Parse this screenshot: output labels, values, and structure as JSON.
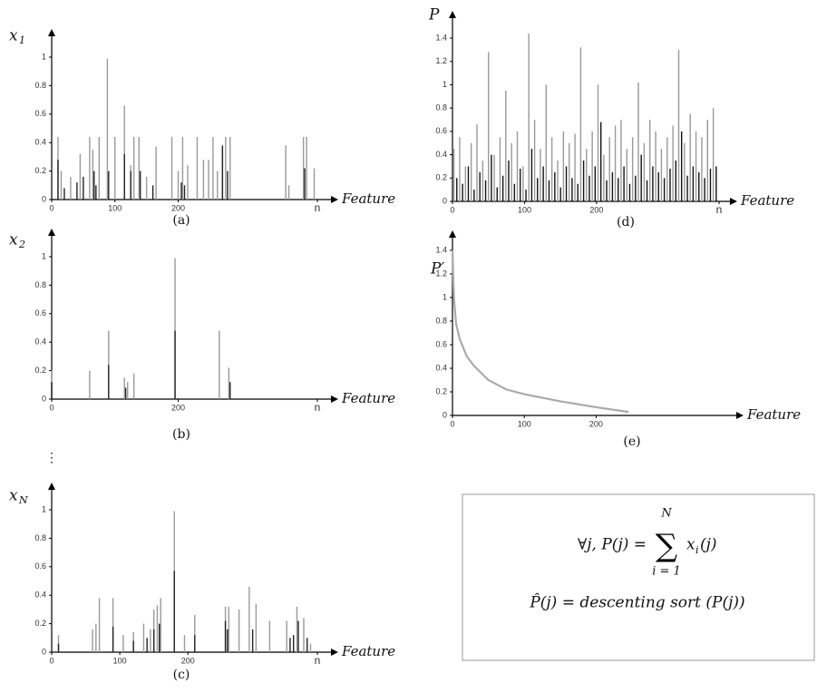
{
  "chart_data": [
    {
      "type": "bar",
      "ylabel": "x",
      "ylabel_sub": "1",
      "xlabel": "Feature",
      "caption": "(a)",
      "xlim": [
        0,
        420
      ],
      "ylim": [
        0,
        1
      ],
      "xticks": [
        0,
        100,
        200,
        {
          "value": 420,
          "label": "n"
        }
      ],
      "yticks": [
        0,
        0.2,
        0.4,
        0.6,
        0.8,
        1
      ],
      "series": [
        {
          "color": "#9a9a9a",
          "x": [
            10,
            15,
            30,
            45,
            60,
            65,
            75,
            88,
            100,
            115,
            125,
            130,
            138,
            150,
            165,
            190,
            200,
            207,
            215,
            230,
            240,
            248,
            255,
            262,
            270,
            275,
            282,
            370,
            375,
            398,
            403,
            415
          ],
          "values": [
            0.44,
            0.2,
            0.16,
            0.32,
            0.44,
            0.35,
            0.44,
            0.99,
            0.44,
            0.66,
            0.24,
            0.44,
            0.44,
            0.16,
            0.37,
            0.44,
            0.2,
            0.44,
            0.24,
            0.44,
            0.28,
            0.28,
            0.44,
            0.2,
            0.37,
            0.44,
            0.44,
            0.38,
            0.1,
            0.44,
            0.44,
            0.22
          ]
        },
        {
          "color": "#222222",
          "x": [
            10,
            20,
            40,
            50,
            67,
            70,
            90,
            115,
            125,
            140,
            160,
            205,
            210,
            270,
            278,
            400
          ],
          "values": [
            0.28,
            0.08,
            0.12,
            0.16,
            0.2,
            0.1,
            0.2,
            0.32,
            0.2,
            0.2,
            0.1,
            0.12,
            0.1,
            0.38,
            0.2,
            0.22
          ]
        }
      ]
    },
    {
      "type": "bar",
      "ylabel": "x",
      "ylabel_sub": "2",
      "xlabel": "Feature",
      "caption": "(b)",
      "xlim": [
        0,
        420
      ],
      "ylim": [
        0,
        1
      ],
      "xticks": [
        0,
        200,
        {
          "value": 420,
          "label": "n"
        }
      ],
      "yticks": [
        0,
        0.2,
        0.4,
        0.6,
        0.8,
        1
      ],
      "series": [
        {
          "color": "#9a9a9a",
          "x": [
            0,
            60,
            90,
            115,
            120,
            130,
            195,
            265,
            280
          ],
          "values": [
            0.2,
            0.2,
            0.48,
            0.15,
            0.12,
            0.18,
            0.99,
            0.48,
            0.22
          ]
        },
        {
          "color": "#222222",
          "x": [
            0,
            90,
            117,
            195,
            282
          ],
          "values": [
            0.12,
            0.24,
            0.08,
            0.48,
            0.12
          ]
        }
      ]
    },
    {
      "type": "bar",
      "ylabel": "x",
      "ylabel_sub": "N",
      "xlabel": "Feature",
      "caption": "(c)",
      "xlim": [
        0,
        390
      ],
      "ylim": [
        0,
        1
      ],
      "xticks": [
        0,
        100,
        200,
        {
          "value": 390,
          "label": "n"
        }
      ],
      "yticks": [
        0,
        0.2,
        0.4,
        0.6,
        0.8,
        1
      ],
      "series": [
        {
          "color": "#9a9a9a",
          "x": [
            10,
            60,
            65,
            70,
            90,
            105,
            120,
            135,
            145,
            150,
            155,
            160,
            180,
            195,
            210,
            255,
            260,
            275,
            290,
            300,
            320,
            345,
            360,
            370,
            380
          ],
          "values": [
            0.12,
            0.16,
            0.2,
            0.38,
            0.38,
            0.12,
            0.14,
            0.2,
            0.16,
            0.3,
            0.33,
            0.38,
            0.99,
            0.12,
            0.26,
            0.32,
            0.32,
            0.3,
            0.46,
            0.34,
            0.22,
            0.22,
            0.32,
            0.24,
            0.06
          ]
        },
        {
          "color": "#222222",
          "x": [
            10,
            90,
            120,
            140,
            150,
            158,
            180,
            210,
            255,
            258,
            295,
            350,
            355,
            362,
            375
          ],
          "values": [
            0.06,
            0.18,
            0.08,
            0.1,
            0.16,
            0.2,
            0.57,
            0.12,
            0.22,
            0.16,
            0.16,
            0.1,
            0.12,
            0.22,
            0.1
          ]
        }
      ]
    },
    {
      "type": "bar",
      "ylabel": "P",
      "xlabel": "Feature",
      "caption": "(d)",
      "xlim": [
        0,
        370
      ],
      "ylim": [
        0,
        1.4
      ],
      "xticks": [
        0,
        100,
        200,
        {
          "value": 370,
          "label": "n"
        }
      ],
      "yticks": [
        0,
        0.2,
        0.4,
        0.6,
        0.8,
        1,
        1.2,
        1.4
      ],
      "series": [
        {
          "color": "#9a9a9a",
          "x": [
            2,
            10,
            18,
            26,
            34,
            42,
            50,
            58,
            66,
            74,
            82,
            90,
            98,
            106,
            114,
            122,
            130,
            138,
            146,
            154,
            162,
            170,
            178,
            186,
            194,
            202,
            210,
            218,
            226,
            234,
            242,
            250,
            258,
            266,
            274,
            282,
            290,
            298,
            306,
            314,
            322,
            330,
            338,
            346,
            354,
            362
          ],
          "values": [
            0.45,
            0.55,
            0.3,
            0.5,
            0.66,
            0.35,
            1.28,
            0.4,
            0.55,
            0.95,
            0.5,
            0.6,
            0.3,
            1.44,
            0.7,
            0.45,
            1.0,
            0.55,
            0.35,
            0.6,
            0.5,
            0.58,
            1.32,
            0.45,
            0.6,
            1.0,
            0.4,
            0.55,
            0.65,
            0.7,
            0.45,
            0.55,
            1.02,
            0.5,
            0.7,
            0.6,
            0.45,
            0.55,
            0.65,
            1.3,
            0.5,
            0.75,
            0.6,
            0.55,
            0.7,
            0.8
          ]
        },
        {
          "color": "#111111",
          "x": [
            6,
            14,
            22,
            30,
            38,
            46,
            54,
            62,
            70,
            78,
            86,
            94,
            102,
            110,
            118,
            126,
            134,
            142,
            150,
            158,
            166,
            174,
            182,
            190,
            198,
            206,
            214,
            222,
            230,
            238,
            246,
            254,
            262,
            270,
            278,
            286,
            294,
            302,
            310,
            318,
            326,
            334,
            342,
            350,
            358,
            366
          ],
          "values": [
            0.2,
            0.15,
            0.3,
            0.1,
            0.25,
            0.18,
            0.4,
            0.12,
            0.22,
            0.35,
            0.15,
            0.28,
            0.1,
            0.45,
            0.2,
            0.3,
            0.18,
            0.25,
            0.12,
            0.3,
            0.2,
            0.15,
            0.35,
            0.22,
            0.3,
            0.68,
            0.18,
            0.25,
            0.2,
            0.3,
            0.15,
            0.22,
            0.4,
            0.18,
            0.3,
            0.25,
            0.2,
            0.28,
            0.35,
            0.6,
            0.22,
            0.3,
            0.25,
            0.2,
            0.28,
            0.3
          ]
        }
      ]
    },
    {
      "type": "line",
      "ylabel": "P′",
      "xlabel": "Feature",
      "caption": "(e)",
      "xlim": [
        0,
        380
      ],
      "ylim": [
        0,
        1.4
      ],
      "xticks": [
        0,
        100,
        200
      ],
      "yticks": [
        0,
        0.2,
        0.4,
        0.6,
        0.8,
        1,
        1.2,
        1.4
      ],
      "series": [
        {
          "color": "#aaaaaa",
          "x": [
            0,
            2,
            5,
            10,
            20,
            30,
            50,
            75,
            100,
            150,
            200,
            245
          ],
          "values": [
            1.4,
            1.0,
            0.78,
            0.65,
            0.5,
            0.42,
            0.3,
            0.22,
            0.18,
            0.12,
            0.07,
            0.03
          ]
        }
      ]
    }
  ],
  "ellipsis": "⋮",
  "formula": {
    "lead": "∀j,  P(j) =",
    "sum": "∑",
    "upper": "N",
    "lower": "i = 1",
    "term": "x",
    "term_sub": "i",
    "term_rest": "(j)",
    "line2": "P̂(j) = descenting sort (P(j))"
  }
}
